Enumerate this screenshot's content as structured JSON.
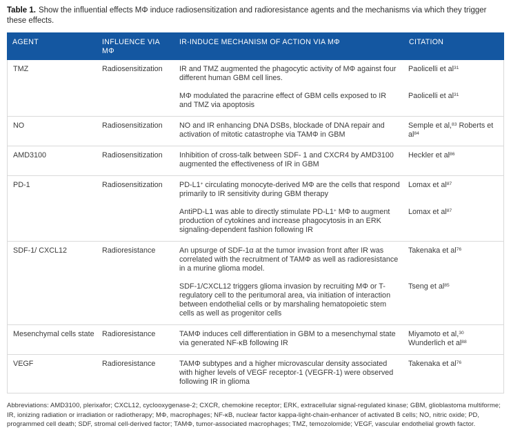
{
  "colors": {
    "header_bg": "#1457a1",
    "header_text": "#ffffff",
    "body_text": "#3a3a3a",
    "border": "#d9d9d9"
  },
  "caption": {
    "label": "Table 1.",
    "text": "Show the influential effects MΦ induce radiosensitization and radioresistance agents and the mechanisms via which they trigger these effects."
  },
  "table": {
    "columns": [
      "AGENT",
      "INFLUENCE VIA MΦ",
      "IR-INDUCE MECHANISM OF ACTION VIA MΦ",
      "CITATION"
    ],
    "rows": [
      {
        "agent": "TMZ",
        "influence": "Radiosensitization",
        "entries": [
          {
            "mechanism": [
              {
                "t": "IR and TMZ augmented the phagocytic activity of MΦ against four different human GBM cell lines."
              }
            ],
            "citation": [
              {
                "t": "Paolicelli et al"
              },
              {
                "t": "31",
                "sup": true
              }
            ]
          },
          {
            "mechanism": [
              {
                "t": "MΦ modulated the paracrine effect of GBM cells exposed to IR and TMZ via apoptosis"
              }
            ],
            "citation": [
              {
                "t": "Paolicelli et al"
              },
              {
                "t": "31",
                "sup": true
              }
            ]
          }
        ]
      },
      {
        "agent": "NO",
        "influence": "Radiosensitization",
        "entries": [
          {
            "mechanism": [
              {
                "t": "NO and IR enhancing DNA DSBs, blockade of DNA repair and activation of mitotic catastrophe via TAMΦ in GBM"
              }
            ],
            "citation": [
              {
                "t": "Semple et al,"
              },
              {
                "t": "83",
                "sup": true
              },
              {
                "t": " Roberts et al"
              },
              {
                "t": "84",
                "sup": true
              }
            ]
          }
        ]
      },
      {
        "agent": "AMD3100",
        "influence": "Radiosensitization",
        "entries": [
          {
            "mechanism": [
              {
                "t": "Inhibition of cross-talk between SDF- 1 and CXCR4 by AMD3100 augmented the effectiveness of IR in GBM"
              }
            ],
            "citation": [
              {
                "t": "Heckler et al"
              },
              {
                "t": "86",
                "sup": true
              }
            ]
          }
        ]
      },
      {
        "agent": "PD-1",
        "influence": "Radiosensitization",
        "entries": [
          {
            "mechanism": [
              {
                "t": "PD-L1"
              },
              {
                "t": "+",
                "sup": true
              },
              {
                "t": " circulating monocyte-derived MΦ are the cells that respond primarily to IR sensitivity during GBM therapy"
              }
            ],
            "citation": [
              {
                "t": "Lomax et al"
              },
              {
                "t": "87",
                "sup": true
              }
            ]
          },
          {
            "mechanism": [
              {
                "t": "AntiPD-L1 was able to directly stimulate PD-L1"
              },
              {
                "t": "+",
                "sup": true
              },
              {
                "t": " MΦ to augment production of cytokines and increase phagocytosis in an ERK signaling-dependent fashion following IR"
              }
            ],
            "citation": [
              {
                "t": "Lomax et al"
              },
              {
                "t": "87",
                "sup": true
              }
            ]
          }
        ]
      },
      {
        "agent": "SDF-1/ CXCL12",
        "influence": "Radioresistance",
        "entries": [
          {
            "mechanism": [
              {
                "t": "An upsurge of SDF-1α at the tumor invasion front after IR was correlated with the recruitment of TAMΦ as well as radioresistance in a murine glioma model."
              }
            ],
            "citation": [
              {
                "t": "Takenaka et al"
              },
              {
                "t": "76",
                "sup": true
              }
            ]
          },
          {
            "mechanism": [
              {
                "t": "SDF-1/CXCL12 triggers glioma invasion by recruiting MΦ or T-regulatory cell to the peritumoral area, via initiation of interaction between endothelial cells or by marshaling hematopoietic stem cells as well as progenitor cells"
              }
            ],
            "citation": [
              {
                "t": "Tseng et al"
              },
              {
                "t": "85",
                "sup": true
              }
            ]
          }
        ]
      },
      {
        "agent": "Mesenchymal cells state",
        "influence": "Radioresistance",
        "entries": [
          {
            "mechanism": [
              {
                "t": "TAMΦ induces cell differentiation in GBM to a mesenchymal state via generated NF-κB following IR"
              }
            ],
            "citation": [
              {
                "t": "Miyamoto et al,"
              },
              {
                "t": "30",
                "sup": true
              },
              {
                "t": " Wunderlich et al"
              },
              {
                "t": "88",
                "sup": true
              }
            ]
          }
        ]
      },
      {
        "agent": "VEGF",
        "influence": "Radioresistance",
        "entries": [
          {
            "mechanism": [
              {
                "t": "TAMΦ subtypes and a higher microvascular density associated with higher levels of VEGF receptor-1 (VEGFR-1) were observed following IR in glioma"
              }
            ],
            "citation": [
              {
                "t": "Takenaka et al"
              },
              {
                "t": "76",
                "sup": true
              }
            ]
          }
        ]
      }
    ]
  },
  "footnote": "Abbreviations: AMD3100, plerixafor; CXCL12, cyclooxygenase-2; CXCR, chemokine receptor; ERK, extracellular signal-regulated kinase; GBM, glioblastoma multiforme; IR, ionizing radiation or irradiation or radiotherapy; MΦ, macrophages; NF-κB, nuclear factor kappa-light-chain-enhancer of activated B cells; NO, nitric oxide; PD, programmed cell death; SDF, stromal cell-derived factor; TAMΦ, tumor-associated macrophages; TMZ, temozolomide; VEGF, vascular endothelial growth factor."
}
